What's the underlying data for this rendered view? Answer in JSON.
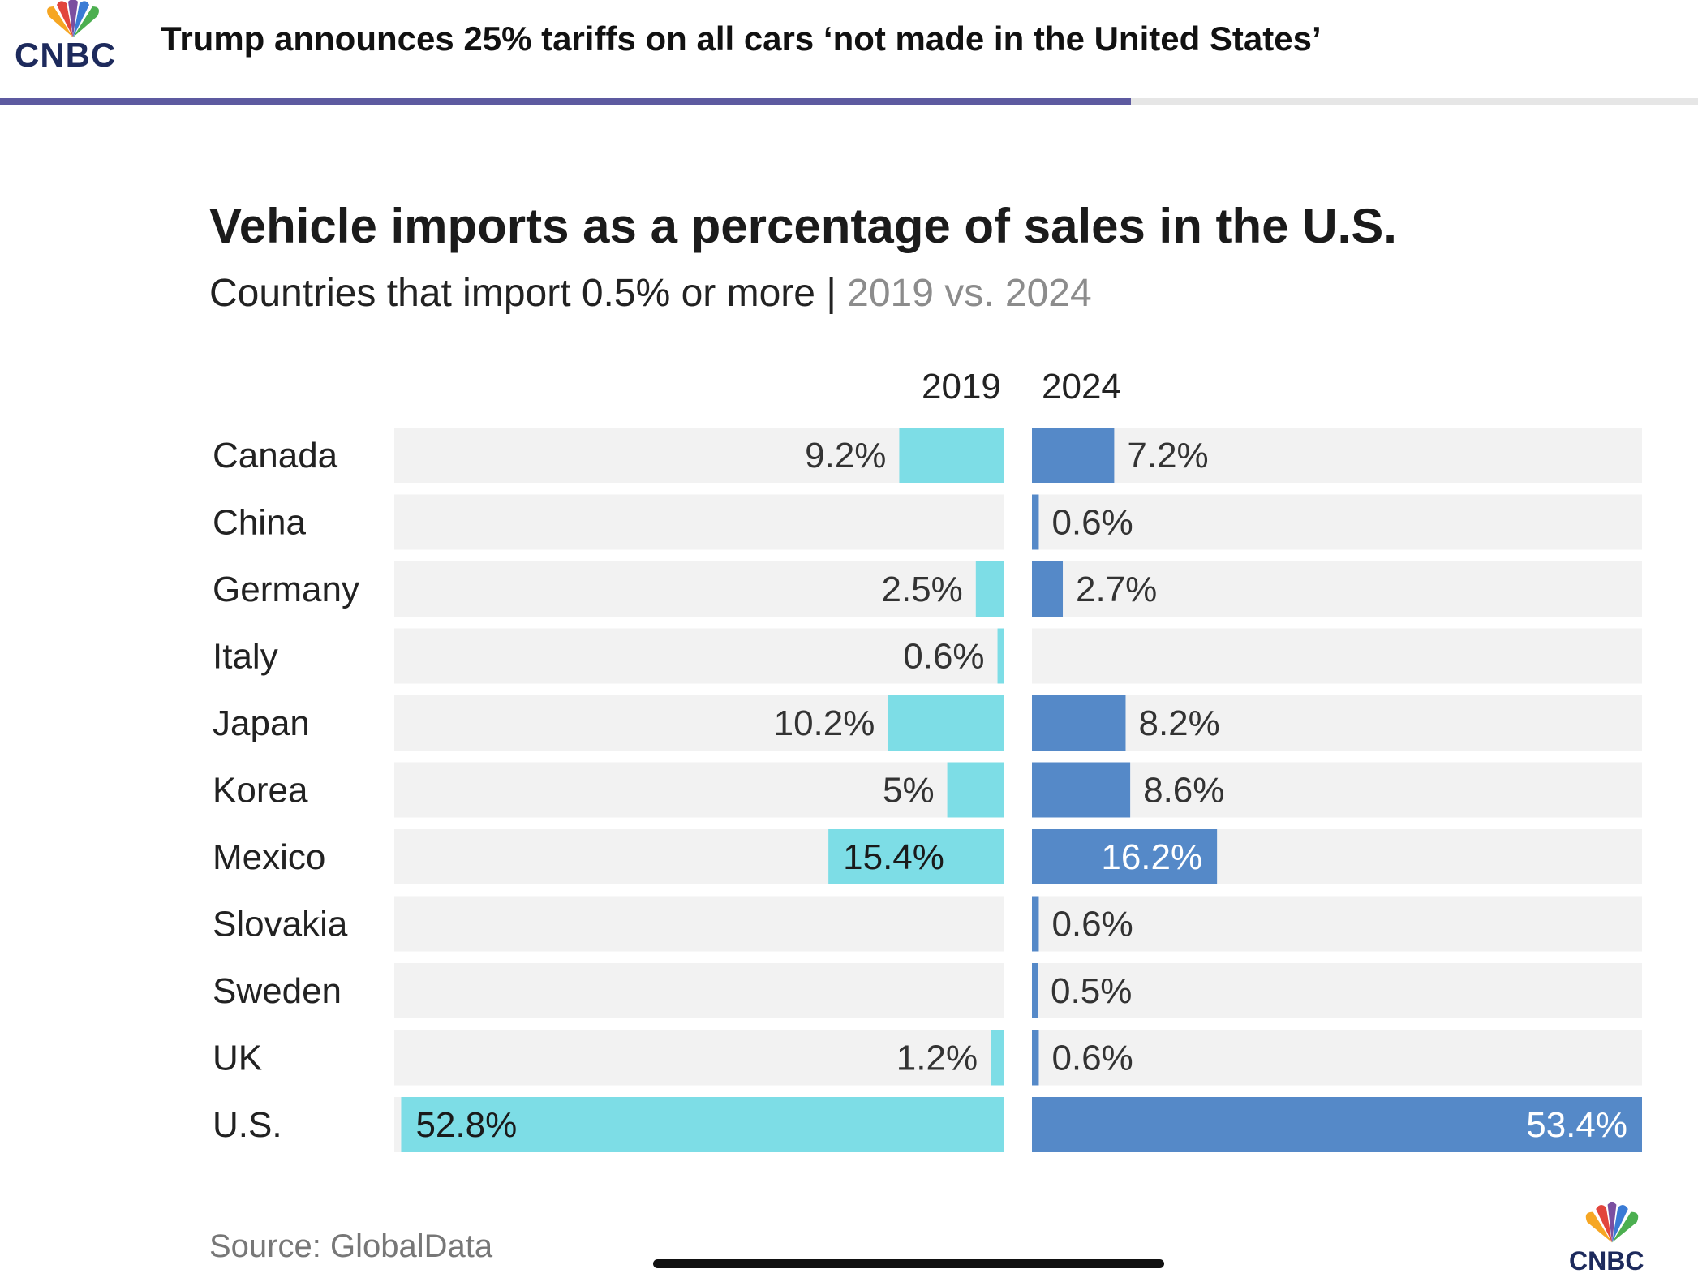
{
  "header": {
    "brand": "CNBC",
    "headline": "Trump announces 25% tariffs on all cars ‘not made in the United States’",
    "scroll_progress_pct": 66.6
  },
  "chart_data": {
    "type": "bar",
    "title": "Vehicle imports as a percentage of sales in the U.S.",
    "subtitle": "Countries that import 0.5% or more",
    "subtitle_sep": " | ",
    "subtitle_years": "2019 vs. 2024",
    "categories": [
      "Canada",
      "China",
      "Germany",
      "Italy",
      "Japan",
      "Korea",
      "Mexico",
      "Slovakia",
      "Sweden",
      "UK",
      "U.S."
    ],
    "series": [
      {
        "name": "2019",
        "color": "#7ddde6",
        "values": [
          9.2,
          null,
          2.5,
          0.6,
          10.2,
          5,
          15.4,
          null,
          null,
          1.2,
          52.8
        ],
        "labels": [
          "9.2%",
          "",
          "2.5%",
          "0.6%",
          "10.2%",
          "5%",
          "15.4%",
          "",
          "",
          "1.2%",
          "52.8%"
        ]
      },
      {
        "name": "2024",
        "color": "#5589c8",
        "values": [
          7.2,
          0.6,
          2.7,
          null,
          8.2,
          8.6,
          16.2,
          0.6,
          0.5,
          0.6,
          53.4
        ],
        "labels": [
          "7.2%",
          "0.6%",
          "2.7%",
          "",
          "8.2%",
          "8.6%",
          "16.2%",
          "0.6%",
          "0.5%",
          "0.6%",
          "53.4%"
        ]
      }
    ],
    "xlim": [
      0,
      53.4
    ],
    "track_color": "#f2f2f2",
    "source": "Source: GlobalData"
  }
}
